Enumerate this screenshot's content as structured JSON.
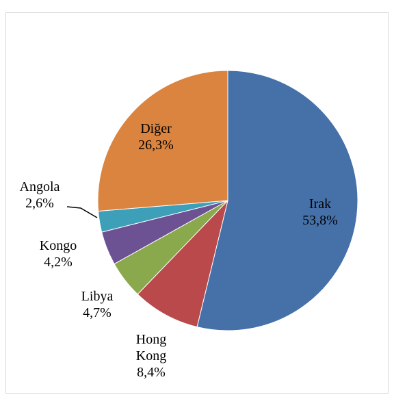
{
  "chart_data": {
    "type": "pie",
    "categories": [
      "Irak",
      "Hong Kong",
      "Libya",
      "Kongo",
      "Angola",
      "Diğer"
    ],
    "values": [
      53.8,
      8.4,
      4.7,
      4.2,
      2.6,
      26.3
    ],
    "value_labels": [
      "53,8%",
      "8,4%",
      "4,7%",
      "4,2%",
      "2,6%",
      "26,3%"
    ],
    "colors": [
      "#4571a8",
      "#b9494a",
      "#8aa84c",
      "#6c5293",
      "#3e9fb9",
      "#da8440"
    ]
  }
}
